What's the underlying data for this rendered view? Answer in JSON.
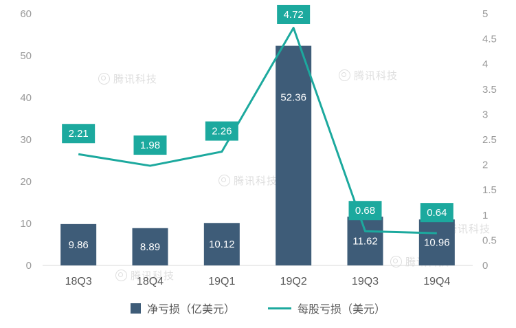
{
  "watermark": {
    "text": "腾讯科技"
  },
  "legend": {
    "bar_label": "净亏损（亿美元）",
    "line_label": "每股亏损（美元）"
  },
  "chart_data": {
    "type": "bar",
    "subtype": "combo-bar-line",
    "categories": [
      "18Q3",
      "18Q4",
      "19Q1",
      "19Q2",
      "19Q3",
      "19Q4"
    ],
    "series": [
      {
        "name": "净亏损（亿美元）",
        "type": "bar",
        "axis": "left",
        "color": "#3e5c78",
        "values": [
          9.86,
          8.89,
          10.12,
          52.36,
          11.62,
          10.96
        ]
      },
      {
        "name": "每股亏损（美元）",
        "type": "line",
        "axis": "right",
        "color": "#1ca99e",
        "values": [
          2.21,
          1.98,
          2.26,
          4.72,
          0.68,
          0.64
        ]
      }
    ],
    "title": "",
    "xlabel": "",
    "ylabel": "",
    "left_axis": {
      "min": 0,
      "max": 60,
      "step": 10,
      "ticks": [
        0,
        10,
        20,
        30,
        40,
        50,
        60
      ]
    },
    "right_axis": {
      "min": 0,
      "max": 5,
      "step": 0.5,
      "ticks": [
        0,
        0.5,
        1,
        1.5,
        2,
        2.5,
        3,
        3.5,
        4,
        4.5,
        5
      ]
    },
    "grid": false,
    "legend_position": "bottom",
    "axis_tick_color": "#999999",
    "category_label_color": "#595959",
    "data_label_color": "#ffffff"
  }
}
